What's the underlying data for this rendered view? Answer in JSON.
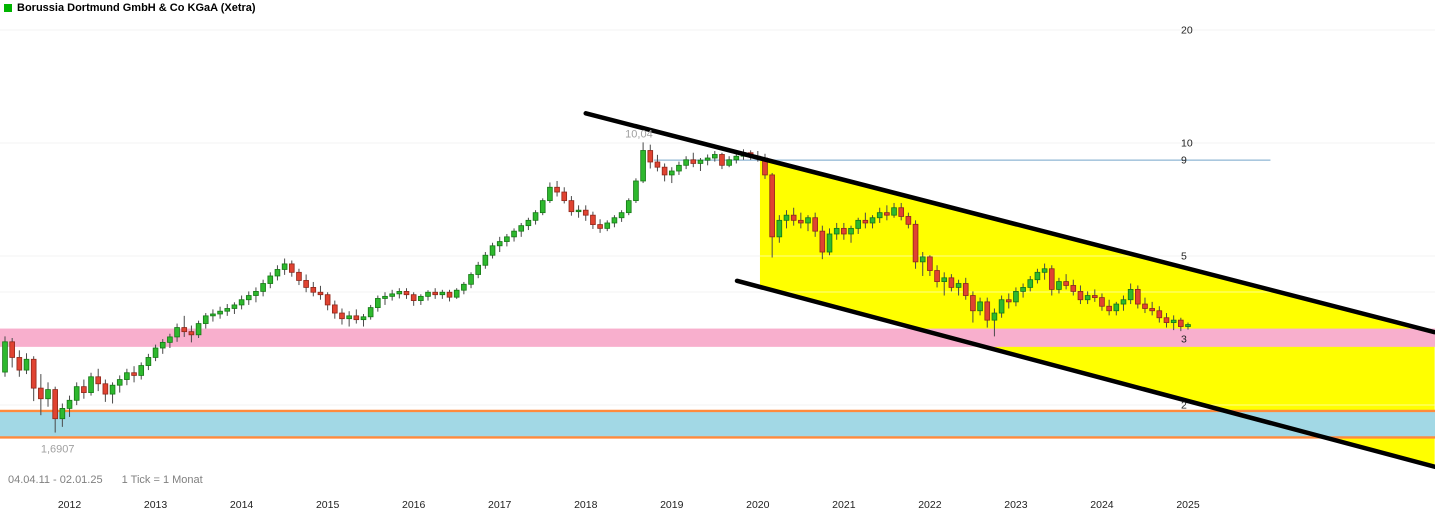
{
  "header": {
    "title": "Borussia Dortmund GmbH & Co KGaA (Xetra)",
    "legend_color": "#00b400"
  },
  "footer": {
    "range": "04.04.11 - 02.01.25",
    "tick": "1 Tick = 1 Monat"
  },
  "chart_data": {
    "type": "candlestick",
    "title": "Borussia Dortmund GmbH & Co KGaA (Xetra)",
    "scale": "log",
    "interval": "1 month",
    "x_start": "2011-04",
    "x_end": "2025-01",
    "ylim": [
      1.45,
      22
    ],
    "grid": "horizontal",
    "legend_position": "top-left",
    "y_axis_labels": [
      {
        "label": "20",
        "price": 20
      },
      {
        "label": "10",
        "price": 10
      },
      {
        "label": "9",
        "price": 9
      },
      {
        "label": "5",
        "price": 5
      },
      {
        "label": "3",
        "price": 3
      },
      {
        "label": "2",
        "price": 2
      }
    ],
    "gridline_prices": [
      20,
      10,
      5,
      4,
      3,
      2
    ],
    "x_axis_years": [
      "2012",
      "2013",
      "2014",
      "2015",
      "2016",
      "2017",
      "2018",
      "2019",
      "2020",
      "2021",
      "2022",
      "2023",
      "2024",
      "2025"
    ],
    "colors": {
      "up": "#2eb82e",
      "up_border": "#157815",
      "down": "#e04331",
      "down_border": "#8f271b",
      "wick": "#4a4a4a",
      "grid": "#e4e4e4",
      "axis_text": "#222222",
      "annotation_text": "#a0a0a0"
    },
    "annotations": {
      "high_label": {
        "text": "10,04",
        "month": 86.5,
        "price": 10.6
      },
      "low_label": {
        "text": "1,6907",
        "month": 5,
        "price": 1.53
      },
      "resistance_line": {
        "price": 9.0,
        "from_month": 90.5,
        "to_month": 176.5,
        "color": "#a9c7de"
      },
      "support_zone_pink": {
        "top_price": 3.2,
        "bottom_price": 2.86,
        "color": "#f8afcd"
      },
      "support_zone_cyan": {
        "top_price": 1.93,
        "bottom_price": 1.64,
        "fill": "#a2d8e5",
        "border_color": "#ff8a3c"
      },
      "down_channel": {
        "fill": "#ffff00",
        "line_color": "#000000",
        "upper": {
          "from_month": 81,
          "from_price": 12.0,
          "to_month": 199.4,
          "to_price": 3.13
        },
        "lower": {
          "from_month": 102.1,
          "from_price": 4.29,
          "to_month": 199.4,
          "to_price": 1.37
        },
        "fill_from_month": 105.3
      }
    },
    "series": [
      [
        "2011-04",
        2.45,
        3.05,
        2.38,
        2.95
      ],
      [
        "2011-05",
        2.95,
        3.02,
        2.52,
        2.68
      ],
      [
        "2011-06",
        2.68,
        2.8,
        2.38,
        2.48
      ],
      [
        "2011-07",
        2.48,
        2.75,
        2.42,
        2.65
      ],
      [
        "2011-08",
        2.65,
        2.7,
        2.05,
        2.22
      ],
      [
        "2011-09",
        2.22,
        2.42,
        1.88,
        2.08
      ],
      [
        "2011-10",
        2.08,
        2.3,
        1.98,
        2.2
      ],
      [
        "2011-11",
        2.2,
        2.24,
        1.69,
        1.84
      ],
      [
        "2011-12",
        1.84,
        2.02,
        1.75,
        1.96
      ],
      [
        "2012-01",
        1.96,
        2.12,
        1.86,
        2.06
      ],
      [
        "2012-02",
        2.06,
        2.3,
        2.0,
        2.24
      ],
      [
        "2012-03",
        2.24,
        2.34,
        2.08,
        2.16
      ],
      [
        "2012-04",
        2.16,
        2.44,
        2.12,
        2.38
      ],
      [
        "2012-05",
        2.38,
        2.5,
        2.18,
        2.28
      ],
      [
        "2012-06",
        2.28,
        2.34,
        2.04,
        2.14
      ],
      [
        "2012-07",
        2.14,
        2.3,
        2.02,
        2.26
      ],
      [
        "2012-08",
        2.26,
        2.4,
        2.16,
        2.34
      ],
      [
        "2012-09",
        2.34,
        2.5,
        2.26,
        2.44
      ],
      [
        "2012-10",
        2.44,
        2.54,
        2.3,
        2.4
      ],
      [
        "2012-11",
        2.4,
        2.6,
        2.34,
        2.55
      ],
      [
        "2012-12",
        2.55,
        2.74,
        2.48,
        2.68
      ],
      [
        "2013-01",
        2.68,
        2.9,
        2.62,
        2.84
      ],
      [
        "2013-02",
        2.84,
        3.0,
        2.74,
        2.94
      ],
      [
        "2013-03",
        2.94,
        3.1,
        2.84,
        3.04
      ],
      [
        "2013-04",
        3.04,
        3.3,
        2.95,
        3.22
      ],
      [
        "2013-05",
        3.22,
        3.46,
        3.04,
        3.14
      ],
      [
        "2013-06",
        3.14,
        3.26,
        2.94,
        3.08
      ],
      [
        "2013-07",
        3.08,
        3.36,
        3.02,
        3.3
      ],
      [
        "2013-08",
        3.3,
        3.52,
        3.2,
        3.46
      ],
      [
        "2013-09",
        3.46,
        3.6,
        3.34,
        3.5
      ],
      [
        "2013-10",
        3.5,
        3.66,
        3.4,
        3.56
      ],
      [
        "2013-11",
        3.56,
        3.72,
        3.46,
        3.62
      ],
      [
        "2013-12",
        3.62,
        3.76,
        3.5,
        3.7
      ],
      [
        "2014-01",
        3.7,
        3.92,
        3.6,
        3.82
      ],
      [
        "2014-02",
        3.82,
        4.02,
        3.7,
        3.92
      ],
      [
        "2014-03",
        3.92,
        4.12,
        3.76,
        4.02
      ],
      [
        "2014-04",
        4.02,
        4.32,
        3.9,
        4.22
      ],
      [
        "2014-05",
        4.22,
        4.52,
        4.1,
        4.42
      ],
      [
        "2014-06",
        4.42,
        4.72,
        4.3,
        4.6
      ],
      [
        "2014-07",
        4.6,
        4.92,
        4.45,
        4.76
      ],
      [
        "2014-08",
        4.76,
        4.86,
        4.4,
        4.52
      ],
      [
        "2014-09",
        4.52,
        4.62,
        4.18,
        4.3
      ],
      [
        "2014-10",
        4.3,
        4.46,
        4.0,
        4.12
      ],
      [
        "2014-11",
        4.12,
        4.26,
        3.9,
        4.0
      ],
      [
        "2014-12",
        4.0,
        4.16,
        3.82,
        3.94
      ],
      [
        "2015-01",
        3.94,
        4.0,
        3.58,
        3.7
      ],
      [
        "2015-02",
        3.7,
        3.8,
        3.4,
        3.52
      ],
      [
        "2015-03",
        3.52,
        3.62,
        3.28,
        3.4
      ],
      [
        "2015-04",
        3.4,
        3.56,
        3.24,
        3.46
      ],
      [
        "2015-05",
        3.46,
        3.6,
        3.3,
        3.38
      ],
      [
        "2015-06",
        3.38,
        3.5,
        3.24,
        3.44
      ],
      [
        "2015-07",
        3.44,
        3.7,
        3.38,
        3.64
      ],
      [
        "2015-08",
        3.64,
        3.92,
        3.55,
        3.85
      ],
      [
        "2015-09",
        3.85,
        4.0,
        3.7,
        3.9
      ],
      [
        "2015-10",
        3.9,
        4.06,
        3.8,
        3.96
      ],
      [
        "2015-11",
        3.96,
        4.1,
        3.85,
        4.02
      ],
      [
        "2015-12",
        4.02,
        4.1,
        3.84,
        3.94
      ],
      [
        "2016-01",
        3.94,
        4.0,
        3.68,
        3.8
      ],
      [
        "2016-02",
        3.8,
        3.95,
        3.7,
        3.9
      ],
      [
        "2016-03",
        3.9,
        4.05,
        3.8,
        4.0
      ],
      [
        "2016-04",
        4.0,
        4.1,
        3.84,
        3.94
      ],
      [
        "2016-05",
        3.94,
        4.06,
        3.84,
        4.0
      ],
      [
        "2016-06",
        4.0,
        4.06,
        3.78,
        3.88
      ],
      [
        "2016-07",
        3.88,
        4.1,
        3.84,
        4.05
      ],
      [
        "2016-08",
        4.05,
        4.26,
        3.95,
        4.2
      ],
      [
        "2016-09",
        4.2,
        4.52,
        4.1,
        4.46
      ],
      [
        "2016-10",
        4.46,
        4.82,
        4.36,
        4.72
      ],
      [
        "2016-11",
        4.72,
        5.12,
        4.62,
        5.02
      ],
      [
        "2016-12",
        5.02,
        5.42,
        4.92,
        5.32
      ],
      [
        "2017-01",
        5.32,
        5.62,
        5.12,
        5.46
      ],
      [
        "2017-02",
        5.46,
        5.72,
        5.3,
        5.62
      ],
      [
        "2017-03",
        5.62,
        5.92,
        5.46,
        5.82
      ],
      [
        "2017-04",
        5.82,
        6.12,
        5.62,
        6.02
      ],
      [
        "2017-05",
        6.02,
        6.32,
        5.86,
        6.22
      ],
      [
        "2017-06",
        6.22,
        6.62,
        6.06,
        6.52
      ],
      [
        "2017-07",
        6.52,
        7.12,
        6.42,
        7.02
      ],
      [
        "2017-08",
        7.02,
        7.85,
        6.92,
        7.62
      ],
      [
        "2017-09",
        7.62,
        7.92,
        7.2,
        7.4
      ],
      [
        "2017-10",
        7.4,
        7.62,
        6.9,
        7.02
      ],
      [
        "2017-11",
        7.02,
        7.22,
        6.4,
        6.56
      ],
      [
        "2017-12",
        6.56,
        6.82,
        6.32,
        6.62
      ],
      [
        "2018-01",
        6.62,
        6.82,
        6.2,
        6.42
      ],
      [
        "2018-02",
        6.42,
        6.56,
        5.9,
        6.06
      ],
      [
        "2018-03",
        6.06,
        6.26,
        5.76,
        5.92
      ],
      [
        "2018-04",
        5.92,
        6.22,
        5.82,
        6.12
      ],
      [
        "2018-05",
        6.12,
        6.42,
        5.96,
        6.32
      ],
      [
        "2018-06",
        6.32,
        6.62,
        6.16,
        6.52
      ],
      [
        "2018-07",
        6.52,
        7.12,
        6.42,
        7.02
      ],
      [
        "2018-08",
        7.02,
        8.05,
        6.92,
        7.92
      ],
      [
        "2018-09",
        7.92,
        10.04,
        7.82,
        9.55
      ],
      [
        "2018-10",
        9.55,
        9.9,
        8.55,
        8.9
      ],
      [
        "2018-11",
        8.9,
        9.3,
        8.4,
        8.62
      ],
      [
        "2018-12",
        8.62,
        8.82,
        7.9,
        8.22
      ],
      [
        "2019-01",
        8.22,
        8.62,
        7.82,
        8.42
      ],
      [
        "2019-02",
        8.42,
        8.92,
        8.22,
        8.72
      ],
      [
        "2019-03",
        8.72,
        9.22,
        8.52,
        9.02
      ],
      [
        "2019-04",
        9.02,
        9.42,
        8.62,
        8.82
      ],
      [
        "2019-05",
        8.82,
        9.12,
        8.42,
        9.0
      ],
      [
        "2019-06",
        9.0,
        9.32,
        8.72,
        9.12
      ],
      [
        "2019-07",
        9.12,
        9.52,
        8.92,
        9.32
      ],
      [
        "2019-08",
        9.32,
        9.42,
        8.52,
        8.72
      ],
      [
        "2019-09",
        8.72,
        9.22,
        8.62,
        9.02
      ],
      [
        "2019-10",
        9.02,
        9.42,
        8.82,
        9.22
      ],
      [
        "2019-11",
        9.22,
        9.62,
        9.02,
        9.42
      ],
      [
        "2019-12",
        9.42,
        9.56,
        9.02,
        9.22
      ],
      [
        "2020-01",
        9.22,
        9.52,
        8.92,
        9.12
      ],
      [
        "2020-02",
        9.12,
        9.36,
        8.02,
        8.22
      ],
      [
        "2020-03",
        8.22,
        8.32,
        4.95,
        5.62
      ],
      [
        "2020-04",
        5.62,
        6.42,
        5.42,
        6.22
      ],
      [
        "2020-05",
        6.22,
        6.62,
        5.92,
        6.42
      ],
      [
        "2020-06",
        6.42,
        6.72,
        6.02,
        6.22
      ],
      [
        "2020-07",
        6.22,
        6.52,
        5.92,
        6.12
      ],
      [
        "2020-08",
        6.12,
        6.42,
        5.82,
        6.32
      ],
      [
        "2020-09",
        6.32,
        6.52,
        5.62,
        5.82
      ],
      [
        "2020-10",
        5.82,
        6.02,
        4.9,
        5.12
      ],
      [
        "2020-11",
        5.12,
        5.92,
        5.02,
        5.72
      ],
      [
        "2020-12",
        5.72,
        6.12,
        5.52,
        5.92
      ],
      [
        "2021-01",
        5.92,
        6.12,
        5.52,
        5.72
      ],
      [
        "2021-02",
        5.72,
        6.02,
        5.42,
        5.92
      ],
      [
        "2021-03",
        5.92,
        6.32,
        5.72,
        6.22
      ],
      [
        "2021-04",
        6.22,
        6.52,
        5.92,
        6.12
      ],
      [
        "2021-05",
        6.12,
        6.42,
        5.92,
        6.32
      ],
      [
        "2021-06",
        6.32,
        6.72,
        6.12,
        6.52
      ],
      [
        "2021-07",
        6.52,
        6.82,
        6.22,
        6.42
      ],
      [
        "2021-08",
        6.42,
        6.92,
        6.32,
        6.72
      ],
      [
        "2021-09",
        6.72,
        6.92,
        6.22,
        6.37
      ],
      [
        "2021-10",
        6.37,
        6.52,
        5.92,
        6.07
      ],
      [
        "2021-11",
        6.07,
        6.22,
        4.62,
        4.82
      ],
      [
        "2021-12",
        4.82,
        5.12,
        4.42,
        4.97
      ],
      [
        "2022-01",
        4.97,
        5.02,
        4.42,
        4.57
      ],
      [
        "2022-02",
        4.57,
        4.72,
        4.12,
        4.27
      ],
      [
        "2022-03",
        4.27,
        4.52,
        3.92,
        4.37
      ],
      [
        "2022-04",
        4.37,
        4.47,
        4.02,
        4.12
      ],
      [
        "2022-05",
        4.12,
        4.32,
        3.92,
        4.22
      ],
      [
        "2022-06",
        4.22,
        4.37,
        3.82,
        3.92
      ],
      [
        "2022-07",
        3.92,
        4.02,
        3.32,
        3.57
      ],
      [
        "2022-08",
        3.57,
        3.87,
        3.47,
        3.77
      ],
      [
        "2022-09",
        3.77,
        3.87,
        3.22,
        3.37
      ],
      [
        "2022-10",
        3.37,
        3.62,
        3.05,
        3.52
      ],
      [
        "2022-11",
        3.52,
        3.92,
        3.42,
        3.82
      ],
      [
        "2022-12",
        3.82,
        3.97,
        3.62,
        3.77
      ],
      [
        "2023-01",
        3.77,
        4.12,
        3.67,
        4.02
      ],
      [
        "2023-02",
        4.02,
        4.22,
        3.87,
        4.12
      ],
      [
        "2023-03",
        4.12,
        4.42,
        4.02,
        4.32
      ],
      [
        "2023-04",
        4.32,
        4.62,
        4.22,
        4.52
      ],
      [
        "2023-05",
        4.52,
        4.77,
        4.32,
        4.62
      ],
      [
        "2023-06",
        4.62,
        4.72,
        3.92,
        4.07
      ],
      [
        "2023-07",
        4.07,
        4.37,
        3.97,
        4.27
      ],
      [
        "2023-08",
        4.27,
        4.47,
        4.07,
        4.17
      ],
      [
        "2023-09",
        4.17,
        4.32,
        3.92,
        4.02
      ],
      [
        "2023-10",
        4.02,
        4.17,
        3.72,
        3.82
      ],
      [
        "2023-11",
        3.82,
        4.02,
        3.72,
        3.92
      ],
      [
        "2023-12",
        3.92,
        4.07,
        3.77,
        3.87
      ],
      [
        "2024-01",
        3.87,
        3.97,
        3.57,
        3.67
      ],
      [
        "2024-02",
        3.67,
        3.82,
        3.47,
        3.57
      ],
      [
        "2024-03",
        3.57,
        3.77,
        3.47,
        3.72
      ],
      [
        "2024-04",
        3.72,
        3.92,
        3.57,
        3.82
      ],
      [
        "2024-05",
        3.82,
        4.22,
        3.72,
        4.07
      ],
      [
        "2024-06",
        4.07,
        4.17,
        3.62,
        3.72
      ],
      [
        "2024-07",
        3.72,
        3.87,
        3.52,
        3.62
      ],
      [
        "2024-08",
        3.62,
        3.77,
        3.47,
        3.57
      ],
      [
        "2024-09",
        3.57,
        3.67,
        3.32,
        3.42
      ],
      [
        "2024-10",
        3.42,
        3.52,
        3.22,
        3.32
      ],
      [
        "2024-11",
        3.32,
        3.47,
        3.17,
        3.37
      ],
      [
        "2024-12",
        3.37,
        3.42,
        3.15,
        3.24
      ],
      [
        "2025-01",
        3.24,
        3.32,
        3.18,
        3.28
      ]
    ]
  }
}
